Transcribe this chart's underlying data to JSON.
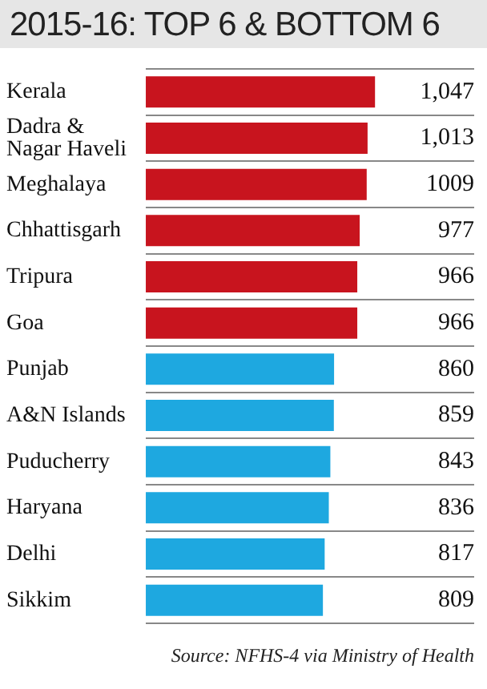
{
  "chart_data": {
    "type": "bar",
    "orientation": "horizontal",
    "title": "2015-16: TOP 6 & BOTTOM 6",
    "categories": [
      "Kerala",
      "Dadra & Nagar Haveli",
      "Meghalaya",
      "Chhattisgarh",
      "Tripura",
      "Goa",
      "Punjab",
      "A&N Islands",
      "Puducherry",
      "Haryana",
      "Delhi",
      "Sikkim"
    ],
    "values": [
      1047,
      1013,
      1009,
      977,
      966,
      966,
      860,
      859,
      843,
      836,
      817,
      809
    ],
    "colors": [
      "#c8141e",
      "#c8141e",
      "#c8141e",
      "#c8141e",
      "#c8141e",
      "#c8141e",
      "#1ea8e0",
      "#1ea8e0",
      "#1ea8e0",
      "#1ea8e0",
      "#1ea8e0",
      "#1ea8e0"
    ],
    "value_labels": [
      "1,047",
      "1,013",
      "1009",
      "977",
      "966",
      "966",
      "860",
      "859",
      "843",
      "836",
      "817",
      "809"
    ],
    "grid": "y",
    "annotations": [
      "Source: NFHS-4 via Ministry of Health"
    ]
  }
}
